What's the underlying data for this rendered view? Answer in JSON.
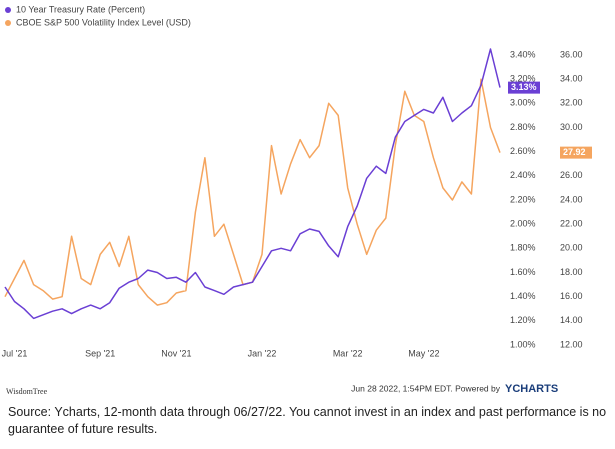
{
  "chart_data": {
    "type": "line",
    "categories": [
      null,
      "Jul '21",
      null,
      null,
      null,
      null,
      null,
      null,
      null,
      null,
      "Sep '21",
      null,
      null,
      null,
      null,
      null,
      null,
      null,
      "Nov '21",
      null,
      null,
      null,
      null,
      null,
      null,
      null,
      null,
      "Jan '22",
      null,
      null,
      null,
      null,
      null,
      null,
      null,
      null,
      "Mar '22",
      null,
      null,
      null,
      null,
      null,
      null,
      null,
      "May '22",
      null,
      null,
      null,
      null,
      null,
      null,
      null,
      null
    ],
    "series": [
      {
        "name": "10 Year Treasury Rate (Percent)",
        "color": "#6a3fd4",
        "axis": "y",
        "values": [
          1.48,
          1.36,
          1.3,
          1.22,
          1.25,
          1.28,
          1.3,
          1.26,
          1.3,
          1.33,
          1.3,
          1.35,
          1.47,
          1.52,
          1.55,
          1.62,
          1.6,
          1.55,
          1.56,
          1.52,
          1.6,
          1.48,
          1.45,
          1.42,
          1.48,
          1.5,
          1.52,
          1.65,
          1.78,
          1.8,
          1.78,
          1.92,
          1.96,
          1.94,
          1.82,
          1.73,
          1.98,
          2.15,
          2.38,
          2.48,
          2.42,
          2.72,
          2.85,
          2.9,
          2.95,
          2.92,
          3.05,
          2.85,
          2.92,
          2.98,
          3.15,
          3.45,
          3.13
        ],
        "last_label": {
          "value": 3.13,
          "label": "3.13%"
        }
      },
      {
        "name": "CBOE S&P 500 Volatility Index Level (USD)",
        "color": "#f5a55f",
        "axis": "y2",
        "values": [
          16.0,
          17.5,
          19.0,
          17.0,
          16.5,
          15.8,
          16.0,
          21.0,
          17.5,
          17.0,
          19.5,
          20.5,
          18.5,
          21.0,
          17.0,
          16.0,
          15.3,
          15.5,
          16.3,
          16.5,
          23.0,
          27.5,
          21.0,
          22.0,
          19.5,
          17.0,
          17.2,
          19.5,
          28.5,
          24.5,
          27.0,
          29.0,
          27.5,
          28.5,
          32.0,
          31.0,
          25.0,
          22.0,
          19.5,
          21.5,
          22.5,
          28.5,
          33.0,
          31.0,
          30.5,
          27.5,
          25.0,
          24.0,
          25.5,
          24.5,
          34.0,
          30.0,
          27.92
        ],
        "last_label": {
          "value": 27.92,
          "label": "27.92"
        }
      }
    ],
    "ylim": [
      1.0,
      3.4
    ],
    "yticks": [
      {
        "value": 1.0,
        "label": "1.00%"
      },
      {
        "value": 1.2,
        "label": "1.20%"
      },
      {
        "value": 1.4,
        "label": "1.40%"
      },
      {
        "value": 1.6,
        "label": "1.60%"
      },
      {
        "value": 1.8,
        "label": "1.80%"
      },
      {
        "value": 2.0,
        "label": "2.00%"
      },
      {
        "value": 2.2,
        "label": "2.20%"
      },
      {
        "value": 2.4,
        "label": "2.40%"
      },
      {
        "value": 2.6,
        "label": "2.60%"
      },
      {
        "value": 2.8,
        "label": "2.80%"
      },
      {
        "value": 3.0,
        "label": "3.00%"
      },
      {
        "value": 3.2,
        "label": "3.20%"
      },
      {
        "value": 3.4,
        "label": "3.40%"
      }
    ],
    "y2lim": [
      12,
      36
    ],
    "y2ticks": [
      {
        "value": 12,
        "label": "12.00"
      },
      {
        "value": 14,
        "label": "14.00"
      },
      {
        "value": 16,
        "label": "16.00"
      },
      {
        "value": 18,
        "label": "18.00"
      },
      {
        "value": 20,
        "label": "20.00"
      },
      {
        "value": 22,
        "label": "22.00"
      },
      {
        "value": 24,
        "label": "24.00"
      },
      {
        "value": 26,
        "label": "26.00"
      },
      {
        "value": 28,
        "label": "28.00"
      },
      {
        "value": 30,
        "label": "30.00"
      },
      {
        "value": 32,
        "label": "32.00"
      },
      {
        "value": 34,
        "label": "34.00"
      },
      {
        "value": 36,
        "label": "36.00"
      }
    ],
    "grid": false
  },
  "footer": {
    "logo": "WisdomTree",
    "timestamp": "Jun 28 2022, 1:54PM EDT. Powered by",
    "brand": "YCHARTS",
    "source": "Source: Ycharts, 12-month data through 06/27/22. You cannot invest in an index and past performance is no guarantee of future results."
  }
}
